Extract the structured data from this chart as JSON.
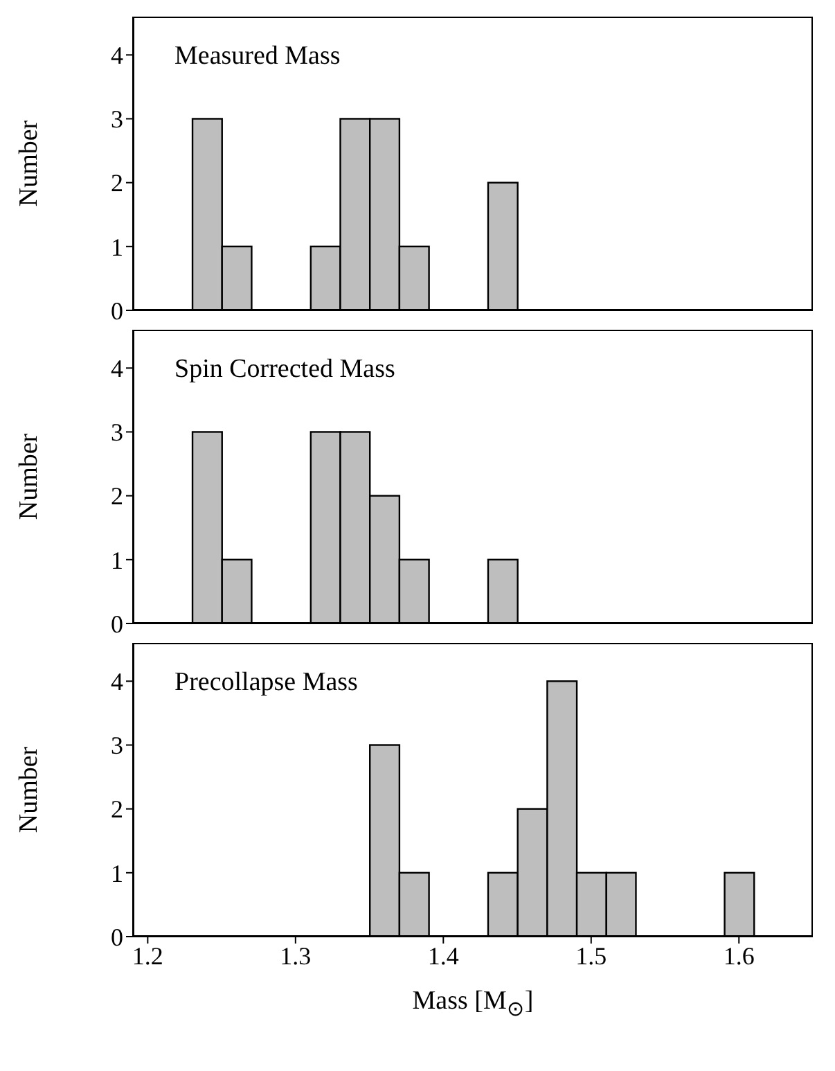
{
  "chart_data": [
    {
      "type": "histogram",
      "title": "Measured Mass",
      "ylabel": "Number",
      "bins": [
        1.23,
        1.25,
        1.27,
        1.29,
        1.31,
        1.33,
        1.35,
        1.37,
        1.39,
        1.41,
        1.43,
        1.45
      ],
      "values": [
        3,
        1,
        0,
        0,
        1,
        3,
        3,
        1,
        0,
        0,
        2
      ],
      "color": "#bebebe",
      "xlim": [
        1.19,
        1.65
      ],
      "xticks": [
        1.2,
        1.3,
        1.4,
        1.5,
        1.6
      ],
      "ylim": [
        0,
        4.6
      ],
      "yticks": [
        0,
        1,
        2,
        3,
        4
      ],
      "tick_labels": "y",
      "grid": false,
      "legend": false
    },
    {
      "type": "histogram",
      "title": "Spin Corrected Mass",
      "ylabel": "Number",
      "bins": [
        1.23,
        1.25,
        1.27,
        1.29,
        1.31,
        1.33,
        1.35,
        1.37,
        1.39,
        1.41,
        1.43,
        1.45
      ],
      "values": [
        3,
        1,
        0,
        0,
        3,
        3,
        2,
        1,
        0,
        0,
        1
      ],
      "color": "#bebebe",
      "xlim": [
        1.19,
        1.65
      ],
      "xticks": [
        1.2,
        1.3,
        1.4,
        1.5,
        1.6
      ],
      "ylim": [
        0,
        4.6
      ],
      "yticks": [
        0,
        1,
        2,
        3,
        4
      ],
      "tick_labels": "y",
      "grid": false,
      "legend": false
    },
    {
      "type": "histogram",
      "title": "Precollapse Mass",
      "xlabel": "Mass [M$_{⊙}$]",
      "ylabel": "Number",
      "bins": [
        1.35,
        1.37,
        1.39,
        1.41,
        1.43,
        1.45,
        1.47,
        1.49,
        1.51,
        1.53,
        1.55,
        1.57,
        1.59,
        1.61
      ],
      "values": [
        3,
        1,
        0,
        0,
        1,
        2,
        4,
        1,
        1,
        0,
        0,
        0,
        1
      ],
      "color": "#bebebe",
      "xlim": [
        1.19,
        1.65
      ],
      "xticks": [
        1.2,
        1.3,
        1.4,
        1.5,
        1.6
      ],
      "ylim": [
        0,
        4.6
      ],
      "yticks": [
        0,
        1,
        2,
        3,
        4
      ],
      "grid": false,
      "legend": false
    }
  ]
}
